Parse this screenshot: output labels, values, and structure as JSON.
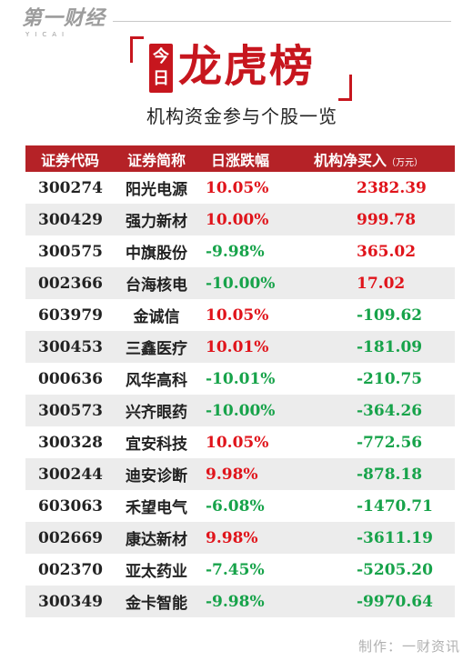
{
  "logo": {
    "main": "第一财经",
    "sub": "YICAI"
  },
  "title": {
    "badge_chars": [
      "今",
      "日"
    ],
    "main": "龙虎榜",
    "subtitle": "机构资金参与个股一览"
  },
  "table": {
    "headers": {
      "code": "证券代码",
      "name": "证券简称",
      "change": "日涨跌幅",
      "net": "机构净买入",
      "net_unit": "（万元）"
    },
    "rows": [
      {
        "code": "300274",
        "name": "阳光电源",
        "change": "10.05%",
        "net": "2382.39",
        "change_dir": "pos",
        "net_dir": "pos"
      },
      {
        "code": "300429",
        "name": "强力新材",
        "change": "10.00%",
        "net": "999.78",
        "change_dir": "pos",
        "net_dir": "pos"
      },
      {
        "code": "300575",
        "name": "中旗股份",
        "change": "-9.98%",
        "net": "365.02",
        "change_dir": "neg",
        "net_dir": "pos"
      },
      {
        "code": "002366",
        "name": "台海核电",
        "change": "-10.00%",
        "net": "17.02",
        "change_dir": "neg",
        "net_dir": "pos"
      },
      {
        "code": "603979",
        "name": "金诚信",
        "change": "10.05%",
        "net": "-109.62",
        "change_dir": "pos",
        "net_dir": "neg"
      },
      {
        "code": "300453",
        "name": "三鑫医疗",
        "change": "10.01%",
        "net": "-181.09",
        "change_dir": "pos",
        "net_dir": "neg"
      },
      {
        "code": "000636",
        "name": "风华高科",
        "change": "-10.01%",
        "net": "-210.75",
        "change_dir": "neg",
        "net_dir": "neg"
      },
      {
        "code": "300573",
        "name": "兴齐眼药",
        "change": "-10.00%",
        "net": "-364.26",
        "change_dir": "neg",
        "net_dir": "neg"
      },
      {
        "code": "300328",
        "name": "宜安科技",
        "change": "10.05%",
        "net": "-772.56",
        "change_dir": "pos",
        "net_dir": "neg"
      },
      {
        "code": "300244",
        "name": "迪安诊断",
        "change": "9.98%",
        "net": "-878.18",
        "change_dir": "pos",
        "net_dir": "neg"
      },
      {
        "code": "603063",
        "name": "禾望电气",
        "change": "-6.08%",
        "net": "-1470.71",
        "change_dir": "neg",
        "net_dir": "neg"
      },
      {
        "code": "002669",
        "name": "康达新材",
        "change": "9.98%",
        "net": "-3611.19",
        "change_dir": "pos",
        "net_dir": "neg"
      },
      {
        "code": "002370",
        "name": "亚太药业",
        "change": "-7.45%",
        "net": "-5205.20",
        "change_dir": "neg",
        "net_dir": "neg"
      },
      {
        "code": "300349",
        "name": "金卡智能",
        "change": "-9.98%",
        "net": "-9970.64",
        "change_dir": "neg",
        "net_dir": "neg"
      }
    ]
  },
  "colors": {
    "accent_red": "#c7161e",
    "header_red": "#b52227",
    "up": "#e0141b",
    "down": "#17a34a"
  },
  "source": "制作：一财资讯"
}
